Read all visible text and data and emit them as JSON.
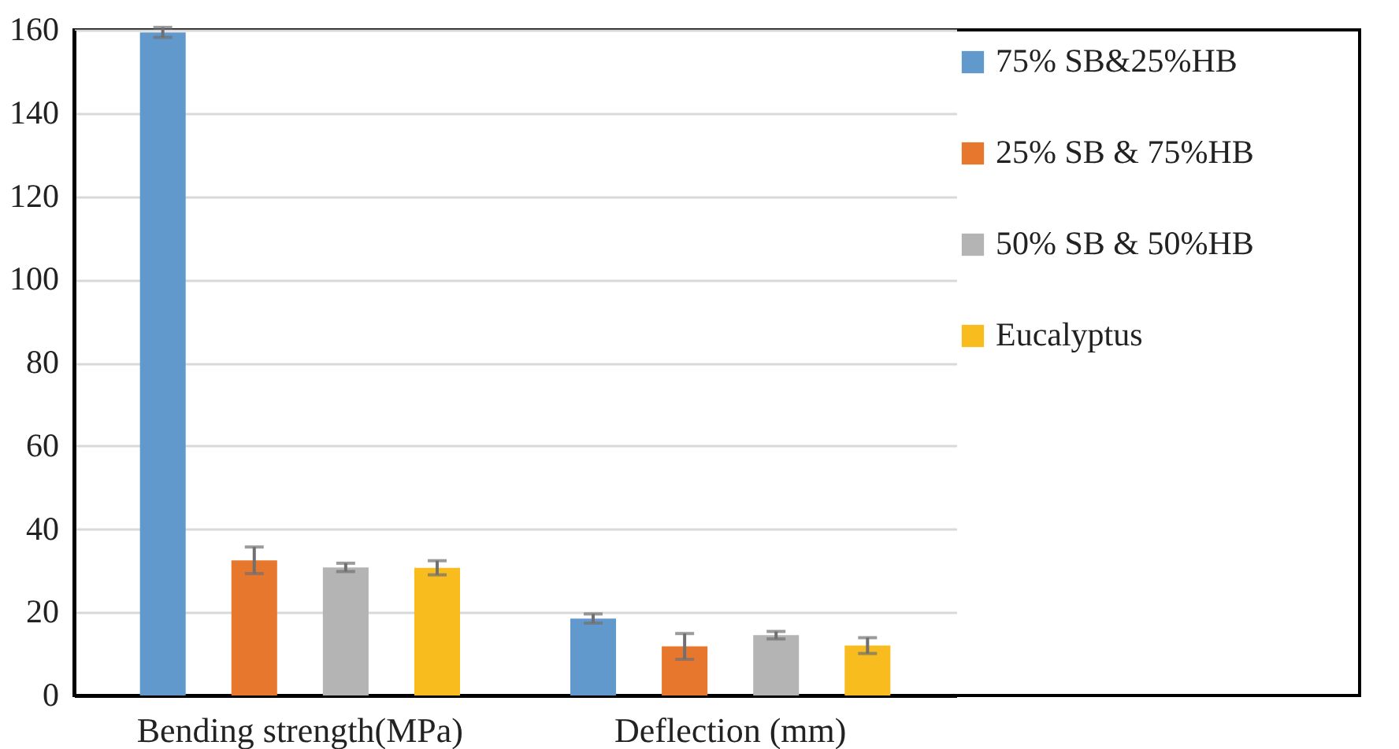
{
  "chart_data": {
    "type": "bar",
    "categories": [
      "Bending strength(MPa)",
      "Deflection (mm)"
    ],
    "series": [
      {
        "name": "75% SB&25%HB",
        "color": "#6199cd",
        "values": [
          159.4,
          18.5
        ],
        "errors": [
          1.2,
          1.1
        ]
      },
      {
        "name": "25% SB & 75%HB",
        "color": "#e8772e",
        "values": [
          32.5,
          11.8
        ],
        "errors": [
          3.2,
          3.1
        ]
      },
      {
        "name": "50% SB & 50%HB",
        "color": "#b4b4b4",
        "values": [
          30.8,
          14.5
        ],
        "errors": [
          1.0,
          0.9
        ]
      },
      {
        "name": "Eucalyptus",
        "color": "#f8bc1e",
        "values": [
          30.7,
          12.0
        ],
        "errors": [
          1.7,
          1.9
        ]
      }
    ],
    "ylim": [
      0,
      160
    ],
    "yticks": [
      0,
      20,
      40,
      60,
      80,
      100,
      120,
      140,
      160
    ],
    "grid": "y",
    "legend": "top right"
  }
}
